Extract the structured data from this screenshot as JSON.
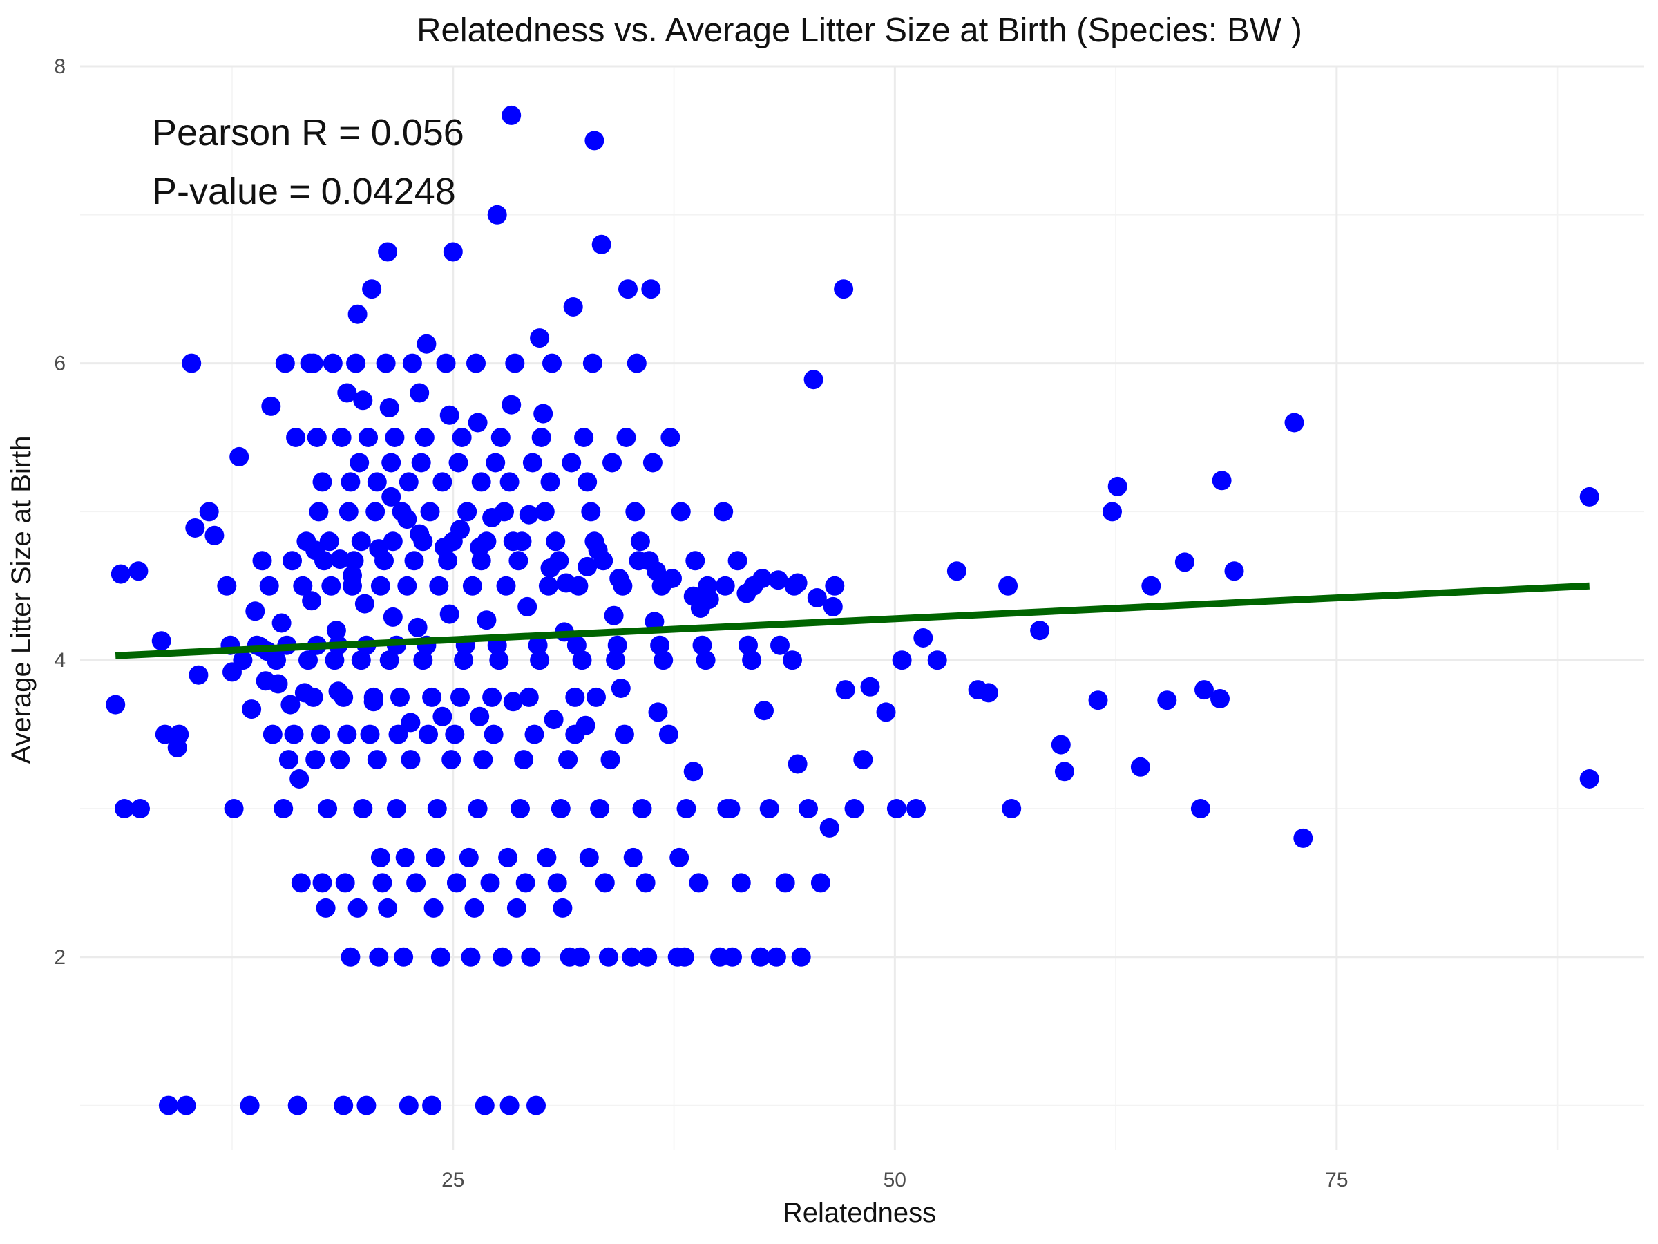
{
  "chart_data": {
    "type": "scatter",
    "title": "Relatedness vs. Average Litter Size at Birth (Species: BW )",
    "xlabel": "Relatedness",
    "ylabel": "Average Litter Size at Birth",
    "xlim": [
      3.9,
      92.4
    ],
    "ylim": [
      0.7,
      8.0
    ],
    "xticks": [
      25,
      50,
      75
    ],
    "yticks": [
      2,
      4,
      6,
      8
    ],
    "grid": true,
    "point_color": "#0000ff",
    "line_color": "#006400",
    "annotations": [
      "Pearson R = 0.056",
      "P-value = 0.04248"
    ],
    "trend_line": {
      "x": [
        5.9,
        89.3
      ],
      "y": [
        4.03,
        4.5
      ]
    },
    "points_note": "Dense cluster of observations estimated from the plot",
    "x": [
      5.9,
      6.2,
      7.2,
      8.5,
      9.5,
      10.4,
      11.5,
      12.2,
      13.6,
      14.1,
      14.5,
      15.1,
      15.8,
      16.3,
      17.2,
      18.6,
      19.3,
      20.8,
      21.5,
      22.4,
      23.1,
      24.5,
      25.4,
      26.5,
      27.2,
      28.4,
      29.3,
      30.5,
      31.4,
      32.6,
      33.2,
      34.4,
      35.5,
      36.5,
      37.4,
      38.6,
      39.5,
      40.4,
      41.6,
      42.5,
      43.4,
      44.5,
      45.6,
      46.5,
      47.2,
      48.6,
      49.5,
      50.4,
      51.6,
      52.4,
      53.5,
      55.3,
      56.4,
      58.2,
      59.4,
      61.5,
      62.3,
      64.5,
      65.4,
      66.4,
      67.5,
      68.4,
      69.2,
      72.6,
      89.3,
      89.3,
      73.1,
      68.5,
      67.3,
      63.9,
      62.6,
      59.6,
      56.6,
      54.7,
      51.2,
      48.2,
      46.3,
      44.5,
      42.6,
      40.7,
      38.6,
      36.6,
      34.5,
      32.5,
      30.7,
      28.4,
      26.5,
      24.4,
      22.6,
      20.5,
      18.5,
      16.6,
      14.4,
      12.5,
      10.6,
      9.4,
      8.7,
      7.3,
      6.4,
      28.3,
      33.0,
      27.5,
      21.3,
      25.0,
      47.1,
      36.2,
      34.9,
      31.8,
      19.6,
      45.4,
      33.4,
      29.9,
      23.5,
      20.4,
      17.1,
      14.7,
      12.9,
      11.2,
      10.2,
      12.6,
      15.4,
      17.9,
      19.9,
      21.8,
      24.1,
      26.4,
      28.8,
      31.1,
      33.3,
      35.7,
      38.2,
      40.5,
      42.9,
      45.1,
      47.7,
      50.1,
      8.9,
      9.9,
      13.5,
      16.2,
      18.8,
      20.1,
      22.5,
      23.8,
      26.8,
      28.2,
      29.7,
      32.2,
      35.1,
      37.7,
      40.1,
      42.4,
      44.7,
      19.2,
      20.8,
      22.2,
      24.3,
      26.0,
      27.8,
      29.4,
      31.6,
      33.8,
      36.0,
      38.1,
      40.8,
      43.3,
      16.4,
      17.6,
      18.9,
      21.0,
      22.9,
      25.2,
      27.1,
      29.1,
      30.9,
      33.6,
      35.9,
      38.9,
      41.3,
      43.8,
      45.8,
      13.1,
      15.0,
      16.8,
      18.3,
      19.8,
      21.4,
      23.3,
      25.6,
      27.6,
      29.9,
      32.3,
      34.2,
      36.9,
      39.3,
      41.9,
      44.2,
      17.4,
      19.1,
      20.6,
      22.1,
      23.7,
      25.8,
      27.9,
      30.2,
      32.8,
      35.3,
      37.9,
      40.3,
      15.5,
      16.9,
      18.2,
      19.5,
      21.2,
      22.7,
      24.6,
      26.3,
      28.5,
      30.6,
      32.9,
      35.4,
      13.8,
      15.3,
      17.0,
      18.4,
      20.0,
      21.6,
      23.0,
      24.8,
      26.9,
      29.2,
      31.3,
      34.1,
      36.4,
      39.0,
      14.8,
      16.0,
      17.5,
      19.0,
      20.3,
      21.9,
      23.6,
      25.1,
      27.3,
      29.6,
      31.9,
      34.7,
      37.2,
      14.2,
      15.9,
      17.7,
      19.4,
      21.1,
      22.8,
      24.7,
      26.6,
      28.7,
      31.0,
      33.5,
      36.1,
      38.7,
      41.1,
      16.1,
      17.3,
      18.7,
      20.2,
      21.7,
      23.4,
      25.5,
      27.7,
      30.0,
      32.4,
      34.8,
      37.3,
      20.9,
      22.3,
      24.0,
      25.9,
      28.1,
      30.3,
      32.7,
      35.2,
      37.8,
      19.7,
      21.5,
      23.2,
      25.3,
      27.4,
      29.5,
      31.7,
      34.0,
      36.3,
      17.8,
      19.6,
      21.3,
      23.9,
      26.2,
      28.6,
      31.2,
      15.7,
      17.2,
      18.6,
      20.7,
      22.6,
      24.9,
      26.7,
      29.0,
      31.5,
      33.9,
      14.6,
      16.5,
      18.1,
      19.3,
      20.9,
      22.4,
      24.2,
      26.1,
      28.0,
      30.4,
      32.1,
      34.6,
      36.8,
      39.4,
      42.0,
      44.3,
      46.6,
      12.4,
      13.9,
      15.6,
      17.3,
      18.5,
      20.1,
      21.8,
      23.5,
      25.7,
      27.5,
      29.8,
      32.0,
      34.3,
      36.7,
      39.1,
      41.7,
      43.5,
      19.0,
      19.9,
      21.4,
      23.1,
      24.8,
      26.4,
      28.3,
      30.1,
      17.1,
      18.8,
      20.5,
      22.0,
      23.8,
      25.4,
      27.2,
      29.3,
      31.9,
      33.1,
      16.7,
      18.0,
      19.8,
      21.6,
      23.3,
      25.0,
      26.9,
      28.9,
      30.8,
      33.0,
      35.6,
      17.6,
      19.2,
      20.7,
      22.5,
      24.4,
      26.6,
      28.2,
      30.5,
      32.6
    ],
    "y": [
      3.7,
      4.58,
      4.6,
      4.13,
      3.5,
      4.89,
      4.84,
      4.5,
      3.67,
      4.09,
      4.06,
      3.84,
      3.7,
      3.2,
      4.74,
      4.68,
      4.57,
      4.75,
      5.1,
      4.95,
      4.85,
      4.76,
      4.88,
      4.76,
      4.96,
      4.8,
      4.98,
      4.62,
      4.52,
      4.63,
      4.74,
      4.55,
      4.67,
      4.6,
      4.55,
      4.43,
      4.41,
      4.5,
      4.45,
      4.55,
      4.54,
      4.52,
      4.42,
      4.36,
      3.8,
      3.82,
      3.65,
      4.0,
      4.15,
      4.0,
      4.6,
      3.78,
      4.5,
      4.2,
      3.43,
      3.73,
      5.0,
      4.5,
      3.73,
      4.66,
      3.8,
      3.74,
      4.6,
      5.6,
      5.1,
      3.2,
      2.8,
      5.21,
      3.0,
      3.28,
      5.17,
      3.25,
      3.0,
      3.8,
      3.0,
      3.33,
      2.87,
      3.3,
      3.66,
      3.0,
      3.25,
      3.65,
      3.81,
      3.56,
      3.6,
      3.72,
      3.62,
      3.62,
      3.58,
      3.72,
      3.79,
      3.78,
      3.86,
      3.92,
      3.9,
      3.41,
      3.5,
      3.0,
      3.0,
      7.67,
      7.5,
      7.0,
      6.75,
      6.75,
      6.5,
      6.5,
      6.5,
      6.38,
      6.33,
      5.89,
      6.8,
      6.17,
      6.13,
      6.5,
      6.0,
      5.71,
      5.37,
      5.0,
      6.0,
      3.0,
      3.0,
      3.0,
      3.0,
      3.0,
      3.0,
      3.0,
      3.0,
      3.0,
      3.0,
      3.0,
      3.0,
      3.0,
      3.0,
      3.0,
      3.0,
      3.0,
      1.0,
      1.0,
      1.0,
      1.0,
      1.0,
      1.0,
      1.0,
      1.0,
      1.0,
      1.0,
      1.0,
      2.0,
      2.0,
      2.0,
      2.0,
      2.0,
      2.0,
      2.0,
      2.0,
      2.0,
      2.0,
      2.0,
      2.0,
      2.0,
      2.0,
      2.0,
      2.0,
      2.0,
      2.0,
      2.0,
      2.5,
      2.5,
      2.5,
      2.5,
      2.5,
      2.5,
      2.5,
      2.5,
      2.5,
      2.5,
      2.5,
      2.5,
      2.5,
      2.5,
      2.5,
      4.0,
      4.0,
      4.0,
      4.0,
      4.0,
      4.0,
      4.0,
      4.0,
      4.0,
      4.0,
      4.0,
      4.0,
      4.0,
      4.0,
      4.0,
      4.0,
      5.0,
      5.0,
      5.0,
      5.0,
      5.0,
      5.0,
      5.0,
      5.0,
      5.0,
      5.0,
      5.0,
      5.0,
      6.0,
      6.0,
      6.0,
      6.0,
      6.0,
      6.0,
      6.0,
      6.0,
      6.0,
      6.0,
      6.0,
      6.0,
      4.33,
      4.25,
      4.4,
      4.2,
      4.38,
      4.29,
      4.22,
      4.31,
      4.27,
      4.36,
      4.19,
      4.3,
      4.26,
      4.35,
      3.5,
      3.5,
      3.5,
      3.5,
      3.5,
      3.5,
      3.5,
      3.5,
      3.5,
      3.5,
      3.5,
      3.5,
      3.5,
      4.67,
      4.67,
      4.67,
      4.67,
      4.67,
      4.67,
      4.67,
      4.67,
      4.67,
      4.67,
      4.67,
      4.67,
      4.67,
      4.67,
      5.5,
      5.5,
      5.5,
      5.5,
      5.5,
      5.5,
      5.5,
      5.5,
      5.5,
      5.5,
      5.5,
      5.5,
      2.67,
      2.67,
      2.67,
      2.67,
      2.67,
      2.67,
      2.67,
      2.67,
      2.67,
      5.33,
      5.33,
      5.33,
      5.33,
      5.33,
      5.33,
      5.33,
      5.33,
      5.33,
      2.33,
      2.33,
      2.33,
      2.33,
      2.33,
      2.33,
      2.33,
      3.33,
      3.33,
      3.33,
      3.33,
      3.33,
      3.33,
      3.33,
      3.33,
      3.33,
      3.33,
      4.5,
      4.5,
      4.5,
      4.5,
      4.5,
      4.5,
      4.5,
      4.5,
      4.5,
      4.5,
      4.5,
      4.5,
      4.5,
      4.5,
      4.5,
      4.5,
      4.5,
      4.1,
      4.1,
      4.1,
      4.1,
      4.1,
      4.1,
      4.1,
      4.1,
      4.1,
      4.1,
      4.1,
      4.1,
      4.1,
      4.1,
      4.1,
      4.1,
      4.1,
      5.8,
      5.75,
      5.7,
      5.8,
      5.65,
      5.6,
      5.72,
      5.66,
      3.75,
      3.75,
      3.75,
      3.75,
      3.75,
      3.75,
      3.75,
      3.75,
      3.75,
      3.75,
      4.8,
      4.8,
      4.8,
      4.8,
      4.8,
      4.8,
      4.8,
      4.8,
      4.8,
      4.8,
      4.8,
      5.2,
      5.2,
      5.2,
      5.2,
      5.2,
      5.2,
      5.2,
      5.2,
      5.2
    ]
  }
}
